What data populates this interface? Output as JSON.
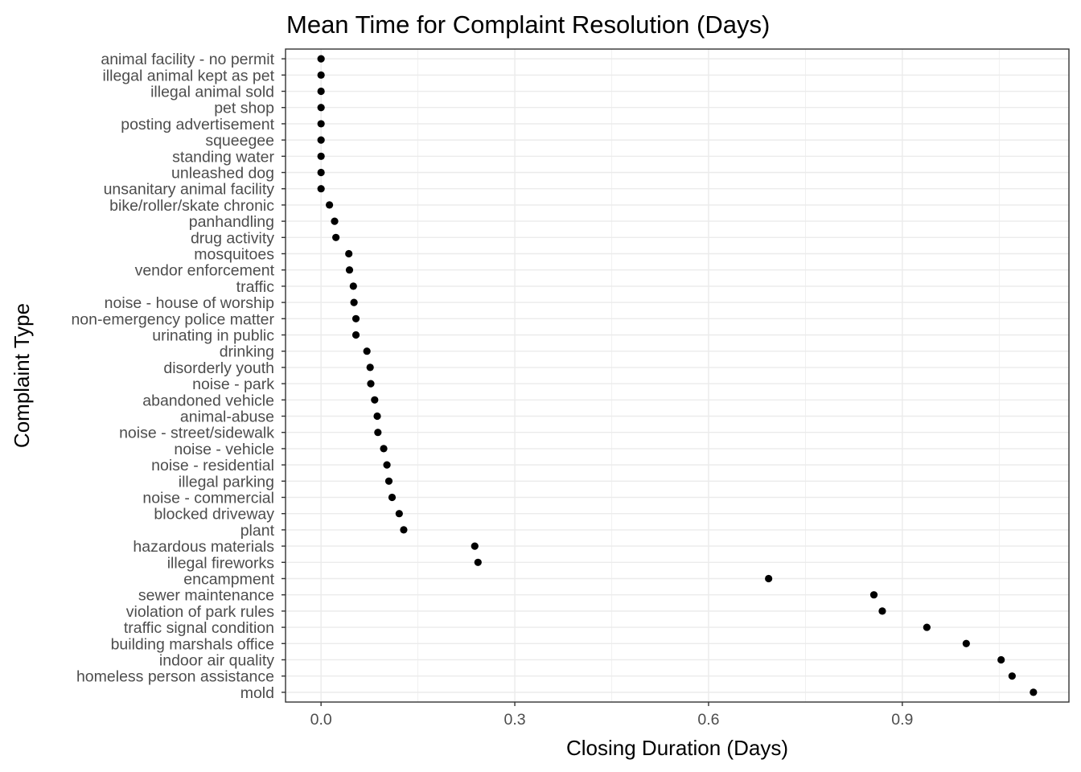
{
  "chart_data": {
    "type": "scatter",
    "title": "Mean Time for Complaint Resolution (Days)",
    "xlabel": "Closing Duration (Days)",
    "ylabel": "Complaint Type",
    "xlim": [
      -0.055,
      1.158
    ],
    "xticks": [
      0.0,
      0.3,
      0.6,
      0.9
    ],
    "xtick_labels": [
      "0.0",
      "0.3",
      "0.6",
      "0.9"
    ],
    "grid": true,
    "legend": "none",
    "point_color": "#000000",
    "categories": [
      "animal facility - no permit",
      "illegal animal kept as pet",
      "illegal animal sold",
      "pet shop",
      "posting advertisement",
      "squeegee",
      "standing water",
      "unleashed dog",
      "unsanitary animal facility",
      "bike/roller/skate chronic",
      "panhandling",
      "drug activity",
      "mosquitoes",
      "vendor enforcement",
      "traffic",
      "noise - house of worship",
      "non-emergency police matter",
      "urinating in public",
      "drinking",
      "disorderly youth",
      "noise - park",
      "abandoned vehicle",
      "animal-abuse",
      "noise - street/sidewalk",
      "noise - vehicle",
      "noise - residential",
      "illegal parking",
      "noise - commercial",
      "blocked driveway",
      "plant",
      "hazardous materials",
      "illegal fireworks",
      "encampment",
      "sewer maintenance",
      "violation of park rules",
      "traffic signal condition",
      "building marshals office",
      "indoor air quality",
      "homeless person assistance",
      "mold"
    ],
    "values": [
      0.0,
      0.0,
      0.0,
      0.0,
      0.0,
      0.0,
      0.0,
      0.0,
      0.0,
      0.013,
      0.021,
      0.023,
      0.043,
      0.044,
      0.05,
      0.051,
      0.054,
      0.054,
      0.071,
      0.076,
      0.077,
      0.083,
      0.087,
      0.088,
      0.097,
      0.102,
      0.105,
      0.11,
      0.121,
      0.128,
      0.238,
      0.243,
      0.693,
      0.856,
      0.869,
      0.938,
      0.999,
      1.053,
      1.07,
      1.103
    ]
  }
}
